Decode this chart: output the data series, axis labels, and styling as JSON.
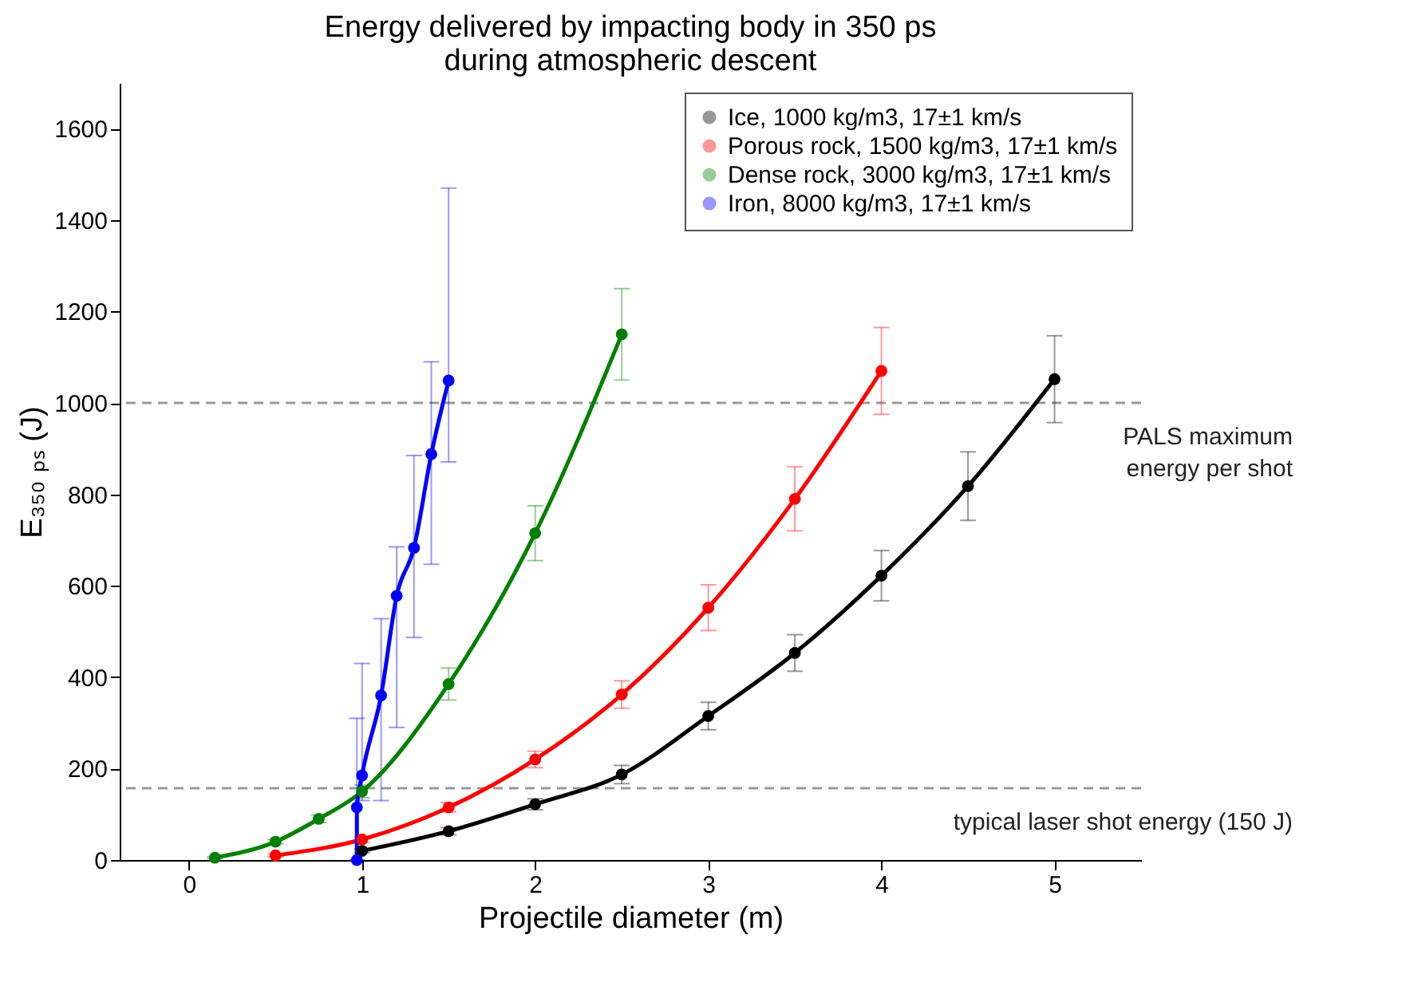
{
  "chart_data": {
    "type": "line",
    "title": "Energy delivered by impacting body in 350 ps\nduring atmospheric descent",
    "xlabel": "Projectile diameter (m)",
    "ylabel": "E₃₅₀ ₚₛ (J)",
    "xlim": [
      -0.4,
      5.5
    ],
    "xticks": [
      0,
      1,
      2,
      3,
      4,
      5
    ],
    "ylim": [
      0,
      1700
    ],
    "yticks": [
      0,
      200,
      400,
      600,
      800,
      1000,
      1200,
      1400,
      1600
    ],
    "grid": false,
    "legend": "top right",
    "marker": "circle",
    "line_style": "solid",
    "series": [
      {
        "name": "Ice, 1000 kg/m3, 17±1 km/s",
        "color": "#000000",
        "x": [
          1,
          1.5,
          2,
          2.5,
          3,
          3.5,
          4,
          4.5,
          5
        ],
        "values": [
          20,
          63,
          122,
          187,
          315,
          453,
          622,
          818,
          1052
        ],
        "errors": [
          4,
          8,
          12,
          20,
          30,
          40,
          55,
          75,
          95
        ]
      },
      {
        "name": "Porous rock, 1500 kg/m3, 17±1 km/s",
        "color": "#ff0000",
        "x": [
          0.5,
          1,
          1.5,
          2,
          2.5,
          3,
          3.5,
          4
        ],
        "values": [
          10,
          45,
          115,
          220,
          362,
          552,
          790,
          1070
        ],
        "errors": [
          3,
          6,
          10,
          18,
          30,
          50,
          70,
          95
        ]
      },
      {
        "name": "Dense rock, 3000 kg/m3, 17±1 km/s",
        "color": "#008000",
        "x": [
          0.15,
          0.5,
          0.75,
          1,
          1.5,
          2,
          2.5
        ],
        "values": [
          5,
          40,
          90,
          150,
          385,
          715,
          1150
        ],
        "errors": [
          2,
          5,
          8,
          14,
          35,
          60,
          100
        ]
      },
      {
        "name": "Iron, 8000 kg/m3, 17±1 km/s",
        "color": "#0000ff",
        "x": [
          0.97,
          0.97,
          1.0,
          1.11,
          1.2,
          1.3,
          1.4,
          1.5
        ],
        "values": [
          0,
          115,
          185,
          360,
          578,
          683,
          888,
          1049
        ],
        "errors": [
          null,
          [
            0,
            310
          ],
          [
            130,
            430
          ],
          [
            130,
            528
          ],
          [
            290,
            685
          ],
          [
            487,
            885
          ],
          [
            647,
            1090
          ],
          [
            871,
            1470
          ]
        ]
      }
    ],
    "ref_lines": [
      {
        "axis": "y",
        "value": 1000,
        "label": "PALS maximum\nenergy per shot",
        "color": "#999999",
        "line_style": "dashed"
      },
      {
        "axis": "y",
        "value": 157,
        "label": "typical laser shot energy (150 J)",
        "color": "#999999",
        "line_style": "dashed"
      }
    ]
  }
}
